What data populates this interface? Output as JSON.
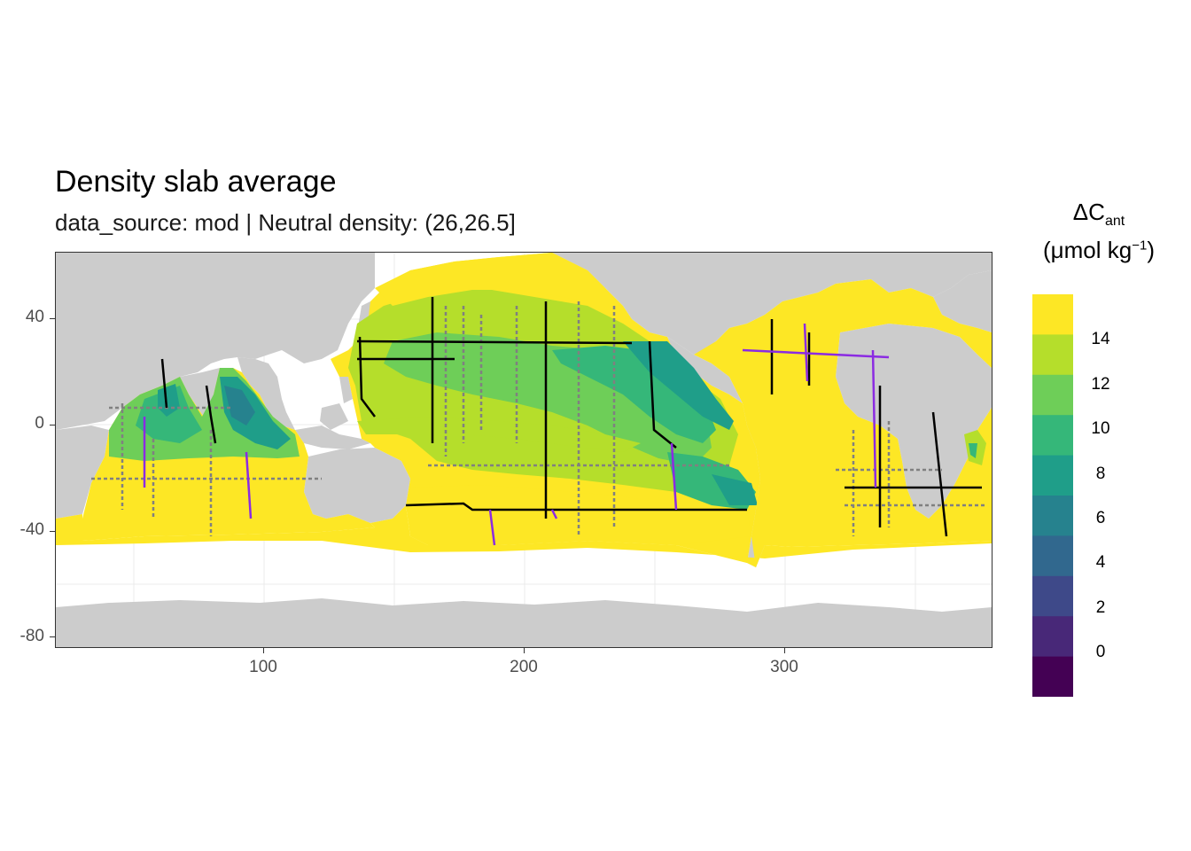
{
  "title": "Density slab average",
  "subtitle": "data_source: mod | Neutral density: (26,26.5]",
  "legend": {
    "title_main": "ΔC",
    "title_sub": "ant",
    "unit_open": "(μmol kg",
    "unit_sup": "−1",
    "unit_close": ")",
    "labels": [
      "14",
      "12",
      "10",
      "8",
      "6",
      "4",
      "2",
      "0"
    ],
    "colors": [
      "#fde725",
      "#b5de2b",
      "#6ece58",
      "#35b779",
      "#1f9e89",
      "#26828e",
      "#31688e",
      "#3e4989",
      "#482878",
      "#440154"
    ]
  },
  "axes": {
    "y_ticks": [
      "40",
      "0",
      "-40",
      "-80"
    ],
    "x_ticks": [
      "100",
      "200",
      "300"
    ],
    "x_range": [
      20,
      380
    ],
    "y_range": [
      -85,
      65
    ]
  },
  "map": {
    "land_color": "#cccccc",
    "no_data_color": "#ffffff",
    "cruise_line_colors": [
      "#000000",
      "#8b2be2",
      "#808080"
    ]
  }
}
